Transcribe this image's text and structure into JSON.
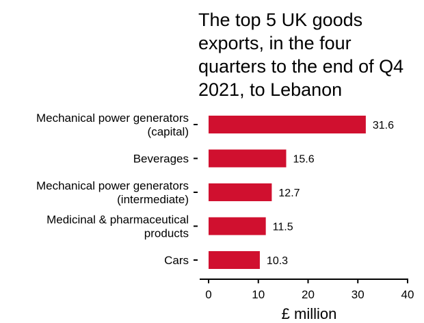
{
  "chart_data": {
    "type": "bar",
    "orientation": "horizontal",
    "title_lines": [
      "The top 5 UK goods",
      "exports, in the four",
      "quarters to the end of Q4",
      "2021, to Lebanon"
    ],
    "categories": [
      [
        "Mechanical power generators",
        "(capital)"
      ],
      [
        "Beverages"
      ],
      [
        "Mechanical power generators",
        "(intermediate)"
      ],
      [
        "Medicinal & pharmaceutical",
        "products"
      ],
      [
        "Cars"
      ]
    ],
    "values": [
      31.6,
      15.6,
      12.7,
      11.5,
      10.3
    ],
    "data_labels": [
      "31.6",
      "15.6",
      "12.7",
      "11.5",
      "10.3"
    ],
    "xlabel": "£ million",
    "xlim": [
      0,
      40
    ],
    "xticks": [
      0,
      10,
      20,
      30,
      40
    ],
    "xtick_labels": [
      "0",
      "10",
      "20",
      "30",
      "40"
    ],
    "bar_color": "#d0102f",
    "grid": false,
    "legend": "none"
  }
}
